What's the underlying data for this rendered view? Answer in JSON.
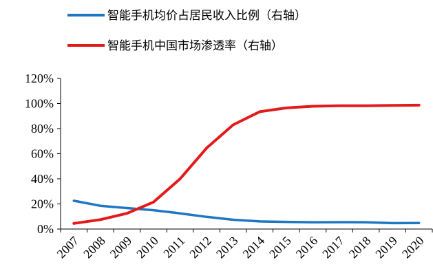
{
  "chart_data": {
    "type": "line",
    "x": [
      "2007",
      "2008",
      "2009",
      "2010",
      "2011",
      "2012",
      "2013",
      "2014",
      "2015",
      "2016",
      "2017",
      "2018",
      "2019",
      "2020"
    ],
    "series": [
      {
        "name": "智能手机均价占居民收入比例（右轴）",
        "color": "#1f77c4",
        "values": [
          0.225,
          0.185,
          0.167,
          0.15,
          0.125,
          0.097,
          0.074,
          0.061,
          0.057,
          0.054,
          0.055,
          0.054,
          0.047,
          0.048
        ]
      },
      {
        "name": "智能手机中国市场渗透率（右轴）",
        "color": "#e31a1c",
        "values": [
          0.045,
          0.075,
          0.125,
          0.215,
          0.4,
          0.645,
          0.83,
          0.935,
          0.965,
          0.978,
          0.982,
          0.982,
          0.985,
          0.987
        ]
      }
    ],
    "yticks": [
      "0%",
      "20%",
      "40%",
      "60%",
      "80%",
      "100%",
      "120%"
    ],
    "ylim": [
      0,
      1.2
    ],
    "grid": false,
    "legend_position": "top"
  }
}
